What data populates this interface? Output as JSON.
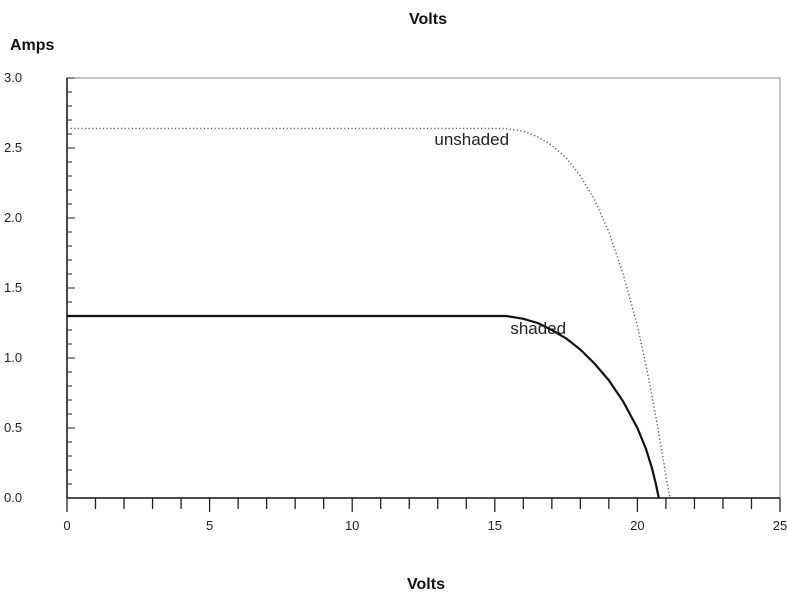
{
  "chart_data": {
    "type": "line",
    "title": "Volts",
    "xlabel": "Volts",
    "ylabel": "Amps",
    "xlim": [
      0,
      25
    ],
    "ylim": [
      0,
      3.0
    ],
    "x_ticks": [
      "0",
      "5",
      "10",
      "15",
      "20",
      "25"
    ],
    "y_ticks": [
      "0.0",
      "0.5",
      "1.0",
      "1.5",
      "2.0",
      "2.5",
      "3.0"
    ],
    "grid": false,
    "series": [
      {
        "name": "unshaded",
        "style": "dotted",
        "color": "#555555",
        "points": [
          [
            0,
            2.64
          ],
          [
            2,
            2.64
          ],
          [
            4,
            2.64
          ],
          [
            6,
            2.64
          ],
          [
            8,
            2.64
          ],
          [
            10,
            2.64
          ],
          [
            12,
            2.64
          ],
          [
            14,
            2.64
          ],
          [
            15.4,
            2.64
          ],
          [
            16,
            2.62
          ],
          [
            16.5,
            2.58
          ],
          [
            17,
            2.52
          ],
          [
            17.5,
            2.43
          ],
          [
            18,
            2.3
          ],
          [
            18.5,
            2.13
          ],
          [
            19,
            1.9
          ],
          [
            19.5,
            1.6
          ],
          [
            20,
            1.23
          ],
          [
            20.4,
            0.85
          ],
          [
            20.7,
            0.52
          ],
          [
            20.9,
            0.28
          ],
          [
            21.05,
            0.1
          ],
          [
            21.15,
            0.0
          ]
        ]
      },
      {
        "name": "shaded",
        "style": "solid",
        "color": "#111111",
        "points": [
          [
            0,
            1.3
          ],
          [
            2,
            1.3
          ],
          [
            4,
            1.3
          ],
          [
            6,
            1.3
          ],
          [
            8,
            1.3
          ],
          [
            10,
            1.3
          ],
          [
            12,
            1.3
          ],
          [
            14,
            1.3
          ],
          [
            15.4,
            1.3
          ],
          [
            16,
            1.28
          ],
          [
            16.5,
            1.25
          ],
          [
            17,
            1.2
          ],
          [
            17.5,
            1.14
          ],
          [
            18,
            1.06
          ],
          [
            18.5,
            0.96
          ],
          [
            19,
            0.84
          ],
          [
            19.5,
            0.69
          ],
          [
            20,
            0.5
          ],
          [
            20.3,
            0.35
          ],
          [
            20.5,
            0.22
          ],
          [
            20.65,
            0.1
          ],
          [
            20.75,
            0.0
          ]
        ]
      }
    ],
    "annotations": [
      {
        "text": "unshaded",
        "x": 15.5,
        "y": 2.52
      },
      {
        "text": "shaded",
        "x": 17.5,
        "y": 1.17
      }
    ]
  }
}
